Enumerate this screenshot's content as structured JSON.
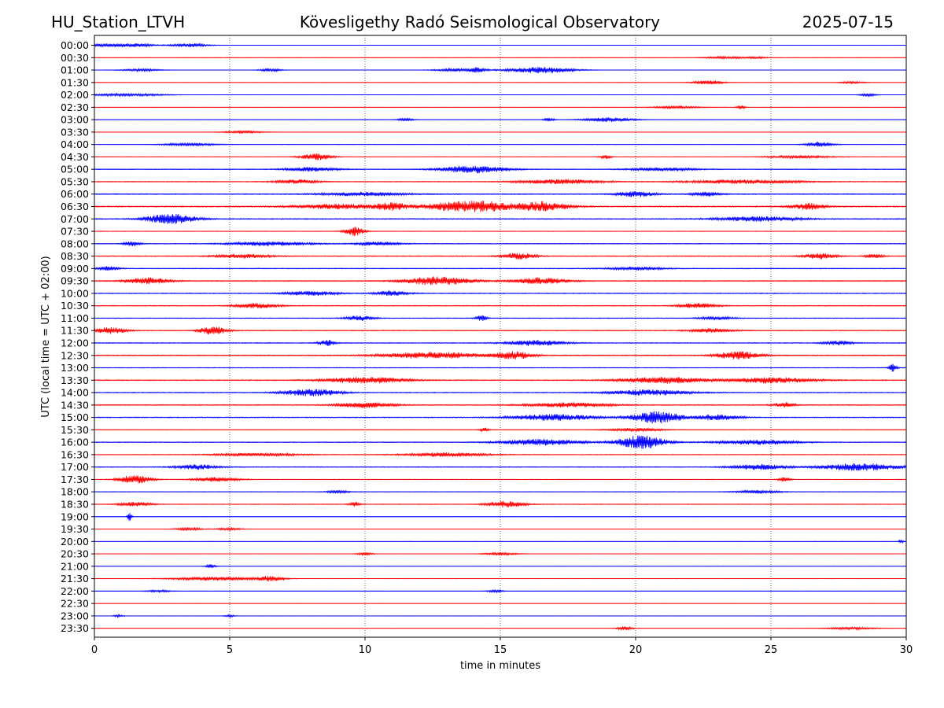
{
  "header": {
    "station": "HU_Station_LTVH",
    "observatory": "Kövesligethy Radó Seismological Observatory",
    "date": "2025-07-15"
  },
  "chart_data": {
    "type": "line",
    "title": "Kövesligethy Radó Seismological Observatory",
    "xlabel": "time in minutes",
    "ylabel": "UTC (local time = UTC + 02:00)",
    "xlim": [
      0,
      30
    ],
    "xticks": [
      "0",
      "5",
      "10",
      "15",
      "20",
      "25",
      "30"
    ],
    "grid": "vertical dotted at each x tick",
    "colors": {
      "even_hour": "#0000ff",
      "half_hour": "#ff0000",
      "frame": "#000000"
    },
    "rows": [
      {
        "label": "00:00",
        "noise": 0.15,
        "events": [
          [
            0.5,
            0.9,
            2
          ],
          [
            1.6,
            0.6,
            2
          ],
          [
            3.5,
            0.7,
            2.5
          ]
        ]
      },
      {
        "label": "00:30",
        "noise": 0.1,
        "events": [
          [
            23.3,
            0.8,
            1.5
          ],
          [
            24.5,
            0.4,
            1.2
          ]
        ]
      },
      {
        "label": "01:00",
        "noise": 0.15,
        "events": [
          [
            1.7,
            0.8,
            1.5
          ],
          [
            6.5,
            0.4,
            2
          ],
          [
            13.5,
            0.9,
            2
          ],
          [
            14.2,
            0.2,
            3
          ],
          [
            16.5,
            1.2,
            4
          ]
        ]
      },
      {
        "label": "01:30",
        "noise": 0.12,
        "events": [
          [
            22.7,
            0.6,
            2.5
          ],
          [
            28,
            0.5,
            1.5
          ]
        ]
      },
      {
        "label": "02:00",
        "noise": 0.12,
        "events": [
          [
            1.2,
            1.4,
            1.8
          ],
          [
            28.6,
            0.3,
            2
          ]
        ]
      },
      {
        "label": "02:30",
        "noise": 0.12,
        "events": [
          [
            23.9,
            0.15,
            3
          ],
          [
            21.5,
            1,
            1.5
          ]
        ]
      },
      {
        "label": "03:00",
        "noise": 0.15,
        "events": [
          [
            11.5,
            0.3,
            2
          ],
          [
            19,
            0.9,
            3
          ],
          [
            16.8,
            0.2,
            2.5
          ]
        ]
      },
      {
        "label": "03:30",
        "noise": 0.12,
        "events": [
          [
            5.5,
            0.8,
            1.6
          ]
        ]
      },
      {
        "label": "04:00",
        "noise": 0.2,
        "events": [
          [
            3.5,
            1,
            2
          ],
          [
            26.8,
            0.5,
            3.5
          ]
        ]
      },
      {
        "label": "04:30",
        "noise": 0.25,
        "events": [
          [
            8.2,
            0.6,
            4
          ],
          [
            18.9,
            0.2,
            2.5
          ],
          [
            26,
            1.2,
            1.8
          ]
        ]
      },
      {
        "label": "05:00",
        "noise": 0.45,
        "events": [
          [
            14,
            1.2,
            5
          ],
          [
            8,
            1,
            2.5
          ],
          [
            21,
            1.2,
            2
          ]
        ]
      },
      {
        "label": "05:30",
        "noise": 0.5,
        "events": [
          [
            17.2,
            1.5,
            3
          ],
          [
            7.5,
            0.8,
            2.5
          ],
          [
            24,
            2,
            2.5
          ]
        ]
      },
      {
        "label": "06:00",
        "noise": 0.55,
        "events": [
          [
            20,
            0.7,
            3.5
          ],
          [
            22.6,
            0.5,
            3
          ],
          [
            10,
            1.5,
            2.5
          ]
        ]
      },
      {
        "label": "06:30",
        "noise": 0.7,
        "events": [
          [
            9,
            1.5,
            3
          ],
          [
            11,
            0.6,
            4
          ],
          [
            13.2,
            1.2,
            5
          ],
          [
            14.5,
            0.9,
            5
          ],
          [
            16.5,
            1,
            6
          ],
          [
            26.4,
            0.6,
            4
          ]
        ]
      },
      {
        "label": "07:00",
        "noise": 0.6,
        "events": [
          [
            2.8,
            0.9,
            6.5
          ],
          [
            24.5,
            1.5,
            3
          ]
        ]
      },
      {
        "label": "07:30",
        "noise": 0.35,
        "events": [
          [
            9.6,
            0.35,
            6
          ]
        ]
      },
      {
        "label": "08:00",
        "noise": 0.45,
        "events": [
          [
            6.5,
            1.5,
            2.5
          ],
          [
            10.5,
            0.8,
            2.5
          ],
          [
            1.4,
            0.3,
            3
          ]
        ]
      },
      {
        "label": "08:30",
        "noise": 0.55,
        "events": [
          [
            15.7,
            0.6,
            4
          ],
          [
            26.8,
            0.6,
            3.5
          ],
          [
            28.8,
            0.3,
            3
          ],
          [
            5.5,
            1,
            2.5
          ]
        ]
      },
      {
        "label": "09:00",
        "noise": 0.5,
        "events": [
          [
            0.5,
            0.4,
            2.5
          ],
          [
            20,
            1,
            2
          ]
        ]
      },
      {
        "label": "09:30",
        "noise": 0.55,
        "events": [
          [
            2,
            0.8,
            4
          ],
          [
            12.7,
            1.2,
            5.5
          ],
          [
            16.5,
            1,
            4
          ]
        ]
      },
      {
        "label": "10:00",
        "noise": 0.55,
        "events": [
          [
            11,
            0.6,
            3
          ],
          [
            8,
            1,
            2.5
          ]
        ]
      },
      {
        "label": "10:30",
        "noise": 0.5,
        "events": [
          [
            6,
            0.8,
            3
          ],
          [
            22.3,
            0.7,
            3
          ]
        ]
      },
      {
        "label": "11:00",
        "noise": 0.5,
        "events": [
          [
            14.3,
            0.2,
            3.5
          ],
          [
            9.8,
            0.5,
            3
          ],
          [
            23,
            0.6,
            2
          ]
        ]
      },
      {
        "label": "11:30",
        "noise": 0.5,
        "events": [
          [
            4.4,
            0.5,
            5.5
          ],
          [
            0.6,
            0.6,
            4
          ],
          [
            22.8,
            0.8,
            2.5
          ]
        ]
      },
      {
        "label": "12:00",
        "noise": 0.55,
        "events": [
          [
            8.6,
            0.3,
            3.5
          ],
          [
            16.3,
            1,
            3.5
          ],
          [
            27.5,
            0.5,
            2.5
          ]
        ]
      },
      {
        "label": "12:30",
        "noise": 0.6,
        "events": [
          [
            12.5,
            1.8,
            4
          ],
          [
            15.5,
            0.7,
            4.5
          ],
          [
            23.8,
            0.8,
            5
          ]
        ]
      },
      {
        "label": "13:00",
        "noise": 0.45,
        "events": [
          [
            29.5,
            0.15,
            5
          ]
        ]
      },
      {
        "label": "13:30",
        "noise": 0.6,
        "events": [
          [
            10,
            1.5,
            4
          ],
          [
            21,
            1.5,
            4
          ],
          [
            25,
            1.5,
            3.5
          ]
        ]
      },
      {
        "label": "14:00",
        "noise": 0.55,
        "events": [
          [
            8,
            1,
            4.5
          ],
          [
            20.5,
            1.5,
            3.5
          ]
        ]
      },
      {
        "label": "14:30",
        "noise": 0.55,
        "events": [
          [
            10,
            1,
            3.5
          ],
          [
            17.5,
            1.5,
            3
          ],
          [
            25.5,
            0.4,
            3
          ]
        ]
      },
      {
        "label": "15:00",
        "noise": 0.6,
        "events": [
          [
            17,
            1.5,
            4
          ],
          [
            20.8,
            0.9,
            7.5
          ],
          [
            23,
            0.8,
            3.5
          ]
        ]
      },
      {
        "label": "15:30",
        "noise": 0.3,
        "events": [
          [
            14.4,
            0.15,
            3
          ],
          [
            20,
            1,
            2
          ]
        ]
      },
      {
        "label": "16:00",
        "noise": 0.45,
        "events": [
          [
            16.5,
            1.5,
            4
          ],
          [
            20.2,
            0.9,
            8.5
          ],
          [
            24.5,
            1.5,
            3
          ]
        ]
      },
      {
        "label": "16:30",
        "noise": 0.45,
        "events": [
          [
            13,
            1.5,
            2.5
          ],
          [
            6,
            1.5,
            2
          ]
        ]
      },
      {
        "label": "17:00",
        "noise": 0.5,
        "events": [
          [
            3.8,
            0.8,
            3
          ],
          [
            24.5,
            1,
            3.5
          ],
          [
            28.3,
            1.5,
            4.5
          ]
        ]
      },
      {
        "label": "17:30",
        "noise": 0.35,
        "events": [
          [
            1.5,
            0.6,
            5.5
          ],
          [
            4.5,
            0.8,
            3
          ],
          [
            25.5,
            0.2,
            3
          ]
        ]
      },
      {
        "label": "18:00",
        "noise": 0.35,
        "events": [
          [
            24.5,
            0.8,
            2
          ],
          [
            9,
            0.4,
            2
          ]
        ]
      },
      {
        "label": "18:30",
        "noise": 0.35,
        "events": [
          [
            15.2,
            0.7,
            4
          ],
          [
            1.5,
            0.6,
            3
          ],
          [
            9.6,
            0.2,
            3
          ]
        ]
      },
      {
        "label": "19:00",
        "noise": 0.15,
        "events": [
          [
            1.3,
            0.08,
            6
          ]
        ]
      },
      {
        "label": "19:30",
        "noise": 0.15,
        "events": [
          [
            3.5,
            0.5,
            2
          ],
          [
            5,
            0.5,
            1.5
          ]
        ]
      },
      {
        "label": "20:00",
        "noise": 0.1,
        "events": [
          [
            29.8,
            0.1,
            2.5
          ]
        ]
      },
      {
        "label": "20:30",
        "noise": 0.15,
        "events": [
          [
            15,
            0.6,
            2
          ],
          [
            10,
            0.3,
            1.8
          ]
        ]
      },
      {
        "label": "21:00",
        "noise": 0.12,
        "events": [
          [
            4.3,
            0.2,
            2.5
          ]
        ]
      },
      {
        "label": "21:30",
        "noise": 0.22,
        "events": [
          [
            4.5,
            1.5,
            2.5
          ],
          [
            6.5,
            0.5,
            3
          ]
        ]
      },
      {
        "label": "22:00",
        "noise": 0.1,
        "events": [
          [
            14.8,
            0.3,
            2
          ],
          [
            2.4,
            0.5,
            1.5
          ]
        ]
      },
      {
        "label": "22:30",
        "noise": 0.08,
        "events": []
      },
      {
        "label": "23:00",
        "noise": 0.08,
        "events": [
          [
            0.9,
            0.2,
            1.5
          ],
          [
            5,
            0.2,
            1.5
          ]
        ]
      },
      {
        "label": "23:30",
        "noise": 0.1,
        "events": [
          [
            19.6,
            0.3,
            2.5
          ],
          [
            28,
            1,
            1.5
          ]
        ]
      }
    ]
  }
}
